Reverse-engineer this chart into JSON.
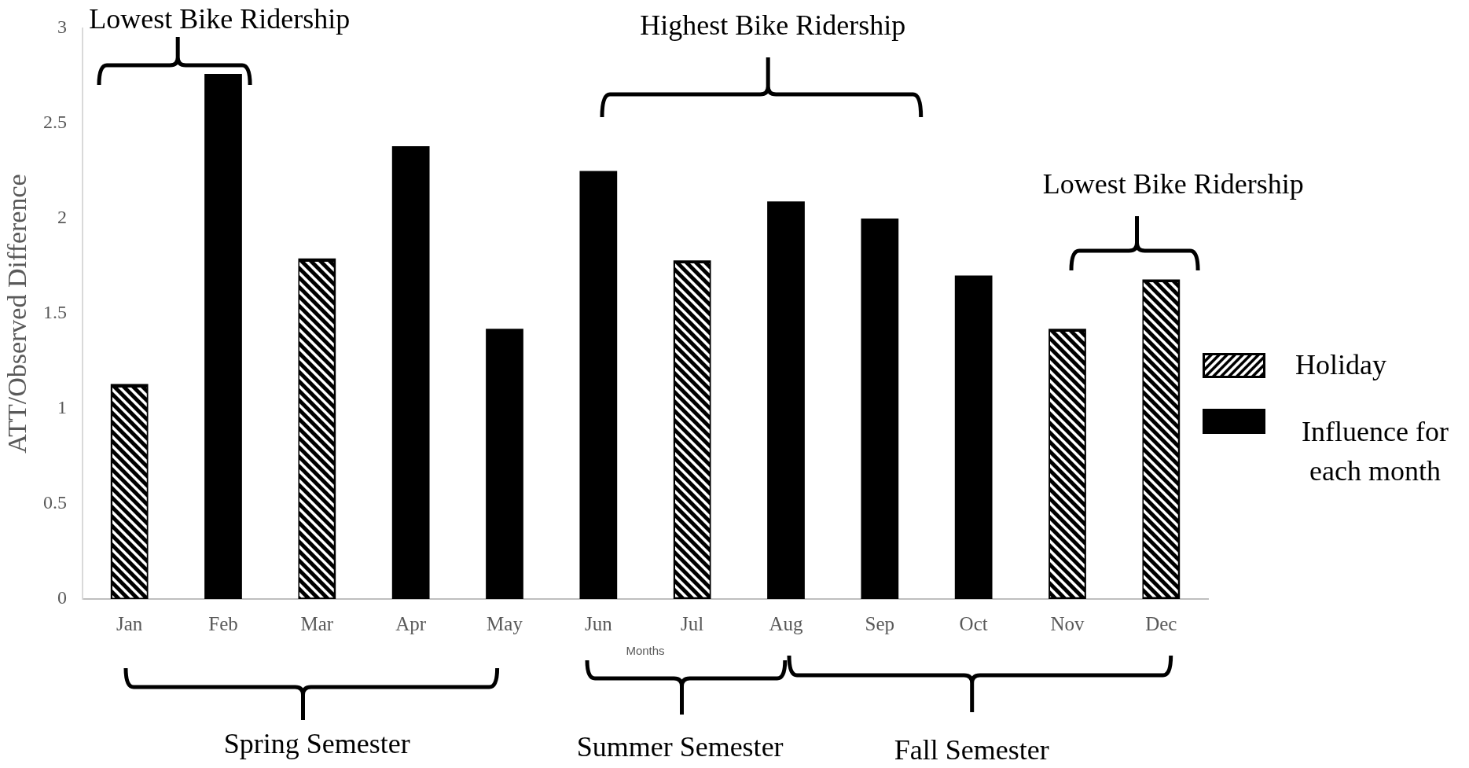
{
  "chart_data": {
    "type": "bar",
    "categories": [
      "Jan",
      "Feb",
      "Mar",
      "Apr",
      "May",
      "Jun",
      "Jul",
      "Aug",
      "Sep",
      "Oct",
      "Nov",
      "Dec"
    ],
    "series": [
      {
        "name": "Holiday",
        "color": "#000000",
        "values": [
          1.13,
          null,
          1.79,
          null,
          null,
          null,
          1.78,
          null,
          null,
          null,
          1.42,
          1.68
        ]
      },
      {
        "name": "Influence for each month",
        "color": "#000000",
        "values": [
          null,
          2.76,
          null,
          2.38,
          1.42,
          2.25,
          null,
          2.09,
          2.0,
          1.7,
          null,
          null
        ]
      }
    ],
    "xlabel": "Months",
    "ylabel": "ATT/Observed Difference",
    "ylim": [
      0,
      3
    ],
    "yticks": [
      0,
      0.5,
      1,
      1.5,
      2,
      2.5,
      3
    ],
    "legend": "right",
    "annotations": [
      "Lowest Bike Ridership",
      "Highest Bike Ridership",
      "Lowest Bike Ridership",
      "Spring Semester",
      "Summer Semester",
      "Fall Semester"
    ]
  }
}
